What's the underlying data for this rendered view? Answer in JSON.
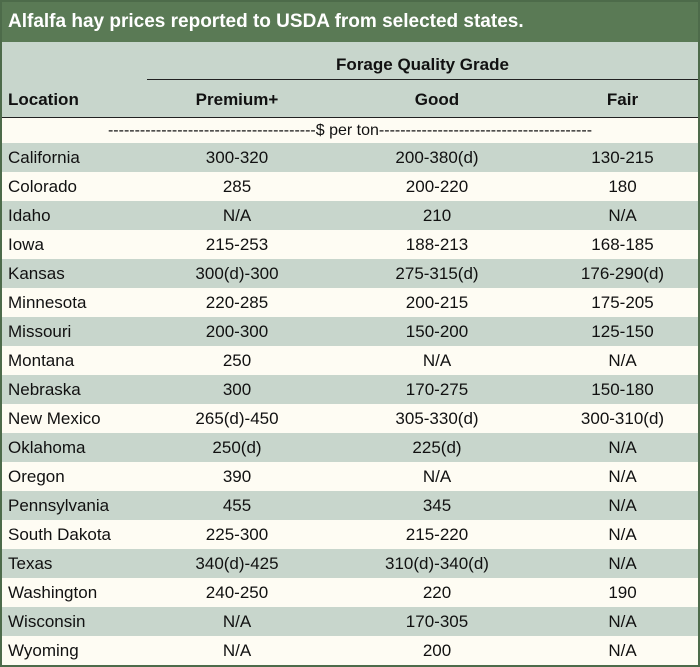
{
  "title": "Alfalfa hay prices reported to USDA from selected states.",
  "header": {
    "group_label": "Forage Quality Grade",
    "location_label": "Location",
    "columns": [
      "Premium+",
      "Good",
      "Fair"
    ]
  },
  "unit_row": "---------------------------------------$ per ton----------------------------------------",
  "colors": {
    "title_bg": "#5a7a55",
    "shade_row": "#c8d6cc",
    "plain_row": "#fefcf3"
  },
  "rows": [
    {
      "location": "California",
      "premium": "300-320",
      "good": "200-380(d)",
      "fair": "130-215"
    },
    {
      "location": "Colorado",
      "premium": "285",
      "good": "200-220",
      "fair": "180"
    },
    {
      "location": "Idaho",
      "premium": "N/A",
      "good": "210",
      "fair": "N/A"
    },
    {
      "location": "Iowa",
      "premium": "215-253",
      "good": "188-213",
      "fair": "168-185"
    },
    {
      "location": "Kansas",
      "premium": "300(d)-300",
      "good": "275-315(d)",
      "fair": "176-290(d)"
    },
    {
      "location": "Minnesota",
      "premium": "220-285",
      "good": "200-215",
      "fair": "175-205"
    },
    {
      "location": "Missouri",
      "premium": "200-300",
      "good": "150-200",
      "fair": "125-150"
    },
    {
      "location": "Montana",
      "premium": "250",
      "good": "N/A",
      "fair": "N/A"
    },
    {
      "location": "Nebraska",
      "premium": "300",
      "good": "170-275",
      "fair": "150-180"
    },
    {
      "location": "New Mexico",
      "premium": "265(d)-450",
      "good": "305-330(d)",
      "fair": "300-310(d)"
    },
    {
      "location": "Oklahoma",
      "premium": "250(d)",
      "good": "225(d)",
      "fair": "N/A"
    },
    {
      "location": "Oregon",
      "premium": "390",
      "good": "N/A",
      "fair": "N/A"
    },
    {
      "location": "Pennsylvania",
      "premium": "455",
      "good": "345",
      "fair": "N/A"
    },
    {
      "location": "South Dakota",
      "premium": "225-300",
      "good": "215-220",
      "fair": "N/A"
    },
    {
      "location": "Texas",
      "premium": "340(d)-425",
      "good": "310(d)-340(d)",
      "fair": "N/A"
    },
    {
      "location": "Washington",
      "premium": "240-250",
      "good": "220",
      "fair": "190"
    },
    {
      "location": "Wisconsin",
      "premium": "N/A",
      "good": "170-305",
      "fair": "N/A"
    },
    {
      "location": "Wyoming",
      "premium": "N/A",
      "good": "200",
      "fair": "N/A"
    }
  ]
}
